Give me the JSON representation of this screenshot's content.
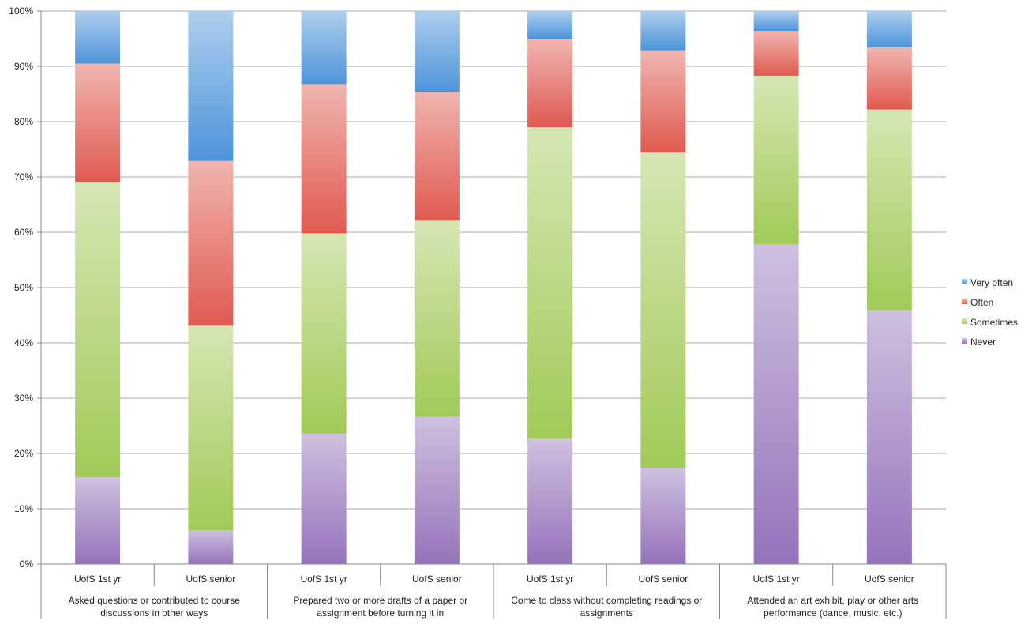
{
  "chart_data": {
    "type": "bar",
    "stacked": true,
    "normalized": true,
    "title": "",
    "xlabel": "",
    "ylabel": "",
    "ylim": [
      0,
      100
    ],
    "grid": true,
    "legend_position": "right",
    "y_ticks": [
      "0%",
      "10%",
      "20%",
      "30%",
      "40%",
      "50%",
      "60%",
      "70%",
      "80%",
      "90%",
      "100%"
    ],
    "categories": [
      "UofS 1st yr",
      "UofS senior",
      "UofS 1st yr",
      "UofS senior",
      "UofS 1st yr",
      "UofS senior",
      "UofS 1st yr",
      "UofS senior"
    ],
    "groups": [
      {
        "label": "Asked questions or contributed to course discussions in other ways",
        "lines": [
          "Asked questions or contributed to course",
          "discussions in other ways"
        ]
      },
      {
        "label": "Prepared two or more drafts of a paper or assignment before turning it in",
        "lines": [
          "Prepared two or more drafts of a paper or",
          "assignment before turning it in"
        ]
      },
      {
        "label": "Come to class without completing readings or assignments",
        "lines": [
          "Come to class without completing readings or",
          "assignments"
        ]
      },
      {
        "label": "Attended an art exhibit, play or other arts performance (dance, music, etc.)",
        "lines": [
          "Attended an art exhibit, play or other arts",
          "performance (dance, music, etc.)"
        ]
      }
    ],
    "series": [
      {
        "name": "Never",
        "color": "#9573bb",
        "values": [
          15.7,
          6.1,
          23.6,
          26.6,
          22.7,
          17.4,
          57.8,
          45.9
        ]
      },
      {
        "name": "Sometimes",
        "color": "#a2ca58",
        "values": [
          53.3,
          37.0,
          36.2,
          35.5,
          56.3,
          57.0,
          30.5,
          36.3
        ]
      },
      {
        "name": "Often",
        "color": "#e05a50",
        "values": [
          21.5,
          29.8,
          27.0,
          23.3,
          16.0,
          18.5,
          8.1,
          11.2
        ]
      },
      {
        "name": "Very often",
        "color": "#4d94da",
        "values": [
          9.5,
          27.1,
          13.2,
          14.6,
          5.0,
          7.1,
          3.6,
          6.6
        ]
      }
    ],
    "legend_order": [
      "Very often",
      "Often",
      "Sometimes",
      "Never"
    ]
  }
}
